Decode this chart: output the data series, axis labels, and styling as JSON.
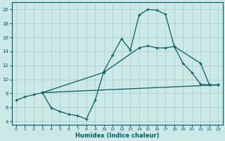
{
  "xlabel": "Humidex (Indice chaleur)",
  "xlim": [
    -0.5,
    23.5
  ],
  "ylim": [
    3.5,
    21
  ],
  "yticks": [
    4,
    6,
    8,
    10,
    12,
    14,
    16,
    18,
    20
  ],
  "xticks": [
    0,
    1,
    2,
    3,
    4,
    5,
    6,
    7,
    8,
    9,
    10,
    11,
    12,
    13,
    14,
    15,
    16,
    17,
    18,
    19,
    20,
    21,
    22,
    23
  ],
  "bg_color": "#cce8e8",
  "grid_color": "#aacccc",
  "line_color": "#006060",
  "line1_x": [
    0,
    1,
    2,
    3,
    4,
    5,
    6,
    7,
    8,
    9,
    10,
    11,
    12,
    13,
    14,
    15,
    16,
    17,
    18,
    19,
    20,
    21,
    22,
    23
  ],
  "line1_y": [
    7.0,
    7.5,
    7.8,
    8.1,
    5.9,
    5.4,
    5.0,
    4.8,
    4.3,
    7.0,
    11.2,
    13.5,
    15.8,
    14.2,
    19.2,
    20.0,
    19.9,
    19.3,
    14.7,
    12.3,
    11.0,
    9.3,
    9.2,
    9.2
  ],
  "line2_x": [
    3,
    10,
    14,
    15,
    16,
    17,
    18,
    21,
    22,
    23
  ],
  "line2_y": [
    8.1,
    11.0,
    14.5,
    14.8,
    14.5,
    14.5,
    14.7,
    12.3,
    9.2,
    9.2
  ],
  "line3_x": [
    3,
    23
  ],
  "line3_y": [
    8.1,
    9.2
  ]
}
